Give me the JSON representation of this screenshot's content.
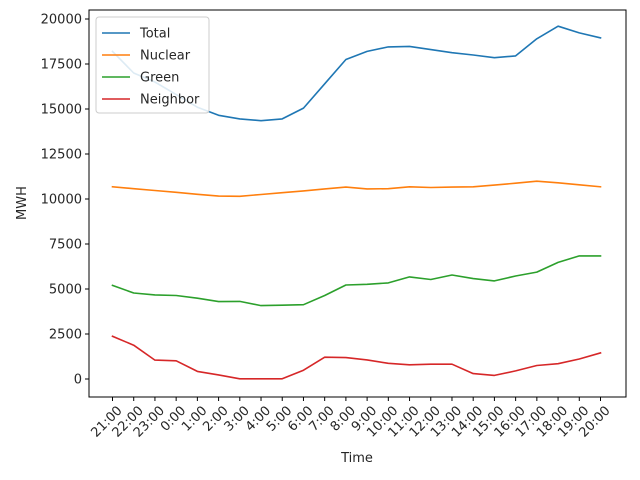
{
  "chart_data": {
    "type": "line",
    "title": "",
    "xlabel": "Time",
    "ylabel": "MWH",
    "ylim": [
      -1000,
      20500
    ],
    "yticks": [
      0,
      2500,
      5000,
      7500,
      10000,
      12500,
      15000,
      17500,
      20000
    ],
    "yticklabels": [
      "0",
      "2500",
      "5000",
      "7500",
      "10000",
      "12500",
      "15000",
      "17500",
      "20000"
    ],
    "categories": [
      "21:00",
      "22:00",
      "23:00",
      "0:00",
      "1:00",
      "2:00",
      "3:00",
      "4:00",
      "5:00",
      "6:00",
      "7:00",
      "8:00",
      "9:00",
      "10:00",
      "11:00",
      "12:00",
      "13:00",
      "14:00",
      "15:00",
      "16:00",
      "17:00",
      "18:00",
      "19:00",
      "20:00"
    ],
    "legend_position": "top-left",
    "grid": false,
    "series": [
      {
        "name": "Total",
        "color": "#1f77b4",
        "values": [
          18200,
          17000,
          16500,
          15800,
          15100,
          14650,
          14450,
          14350,
          14450,
          15050,
          16400,
          17750,
          18200,
          18450,
          18480,
          18300,
          18130,
          18000,
          17850,
          17950,
          18900,
          19600,
          19230,
          18950
        ]
      },
      {
        "name": "Nuclear",
        "color": "#ff7f0e",
        "values": [
          10680,
          10570,
          10470,
          10370,
          10260,
          10160,
          10150,
          10250,
          10350,
          10450,
          10560,
          10660,
          10560,
          10570,
          10680,
          10640,
          10660,
          10680,
          10770,
          10880,
          10990,
          10900,
          10790,
          10680
        ]
      },
      {
        "name": "Green",
        "color": "#2ca02c",
        "values": [
          5200,
          4780,
          4670,
          4640,
          4490,
          4300,
          4310,
          4080,
          4100,
          4130,
          4640,
          5220,
          5260,
          5340,
          5670,
          5530,
          5780,
          5580,
          5450,
          5720,
          5940,
          6480,
          6840,
          6840
        ]
      },
      {
        "name": "Neighbor",
        "color": "#d62728",
        "values": [
          2370,
          1880,
          1050,
          1010,
          420,
          230,
          10,
          10,
          10,
          490,
          1210,
          1190,
          1060,
          870,
          790,
          820,
          820,
          300,
          200,
          450,
          750,
          850,
          1110,
          1450
        ]
      }
    ]
  }
}
